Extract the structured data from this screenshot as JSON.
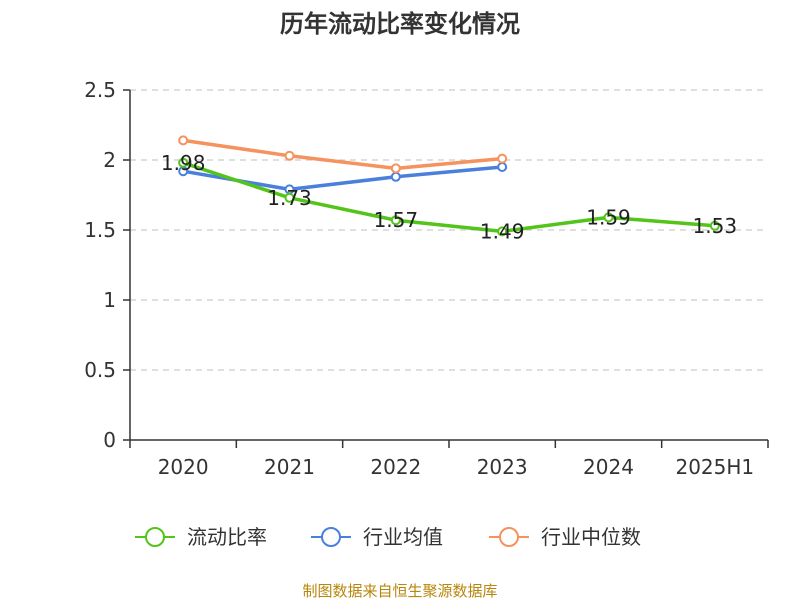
{
  "chart_data": {
    "type": "line",
    "title": "历年流动比率变化情况",
    "categories": [
      "2020",
      "2021",
      "2022",
      "2023",
      "2024",
      "2025H1"
    ],
    "ylim": [
      0,
      2.5
    ],
    "yticks": [
      "0",
      "0.5",
      "1",
      "1.5",
      "2",
      "2.5"
    ],
    "grid": true,
    "legend_position": "bottom",
    "series": [
      {
        "name": "流动比率",
        "color": "#52c41a",
        "values": [
          1.98,
          1.73,
          1.57,
          1.49,
          1.59,
          1.53
        ],
        "labels": [
          "1.98",
          "1.73",
          "1.57",
          "1.49",
          "1.59",
          "1.53"
        ]
      },
      {
        "name": "行业均值",
        "color": "#4a7fdc",
        "values": [
          1.92,
          1.79,
          1.88,
          1.95,
          null,
          null
        ]
      },
      {
        "name": "行业中位数",
        "color": "#f5925e",
        "values": [
          2.14,
          2.03,
          1.94,
          2.01,
          null,
          null
        ]
      }
    ]
  },
  "source": "制图数据来自恒生聚源数据库"
}
